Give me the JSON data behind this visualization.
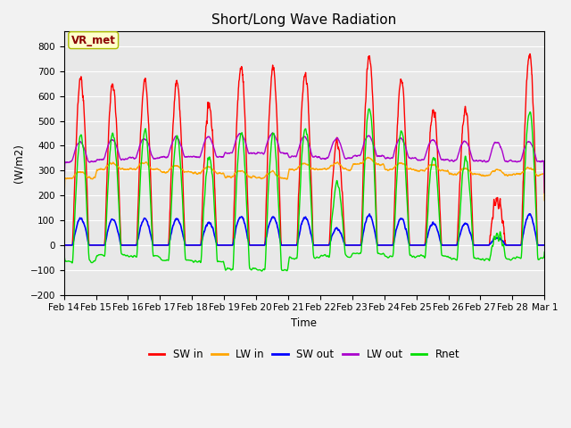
{
  "title": "Short/Long Wave Radiation",
  "xlabel": "Time",
  "ylabel": "(W/m2)",
  "ylim": [
    -200,
    860
  ],
  "yticks": [
    -200,
    -100,
    0,
    100,
    200,
    300,
    400,
    500,
    600,
    700,
    800
  ],
  "date_labels": [
    "Feb 14",
    "Feb 15",
    "Feb 16",
    "Feb 17",
    "Feb 18",
    "Feb 19",
    "Feb 20",
    "Feb 21",
    "Feb 22",
    "Feb 23",
    "Feb 24",
    "Feb 25",
    "Feb 26",
    "Feb 27",
    "Feb 28",
    "Mar 1"
  ],
  "annotation_text": "VR_met",
  "annotation_color": "#8B0000",
  "annotation_bg": "#FFFFCC",
  "annotation_edge": "#AABB00",
  "legend_labels": [
    "SW in",
    "LW in",
    "SW out",
    "LW out",
    "Rnet"
  ],
  "colors": {
    "SW_in": "#FF0000",
    "LW_in": "#FFA500",
    "SW_out": "#0000FF",
    "LW_out": "#AA00CC",
    "Rnet": "#00DD00"
  },
  "linewidths": {
    "SW_in": 1.0,
    "LW_in": 1.0,
    "SW_out": 1.2,
    "LW_out": 1.0,
    "Rnet": 1.0
  },
  "bg_color": "#E8E8E8",
  "fig_color": "#F2F2F2",
  "grid_color": "#FFFFFF",
  "n_days": 15,
  "sw_peaks": [
    670,
    655,
    655,
    655,
    565,
    720,
    710,
    685,
    410,
    760,
    670,
    540,
    550,
    190,
    770
  ],
  "lw_in_base": [
    270,
    305,
    305,
    295,
    290,
    275,
    270,
    305,
    305,
    325,
    305,
    300,
    285,
    280,
    285
  ],
  "lw_out_base": [
    335,
    345,
    350,
    355,
    355,
    370,
    370,
    355,
    350,
    360,
    350,
    345,
    340,
    338,
    338
  ]
}
